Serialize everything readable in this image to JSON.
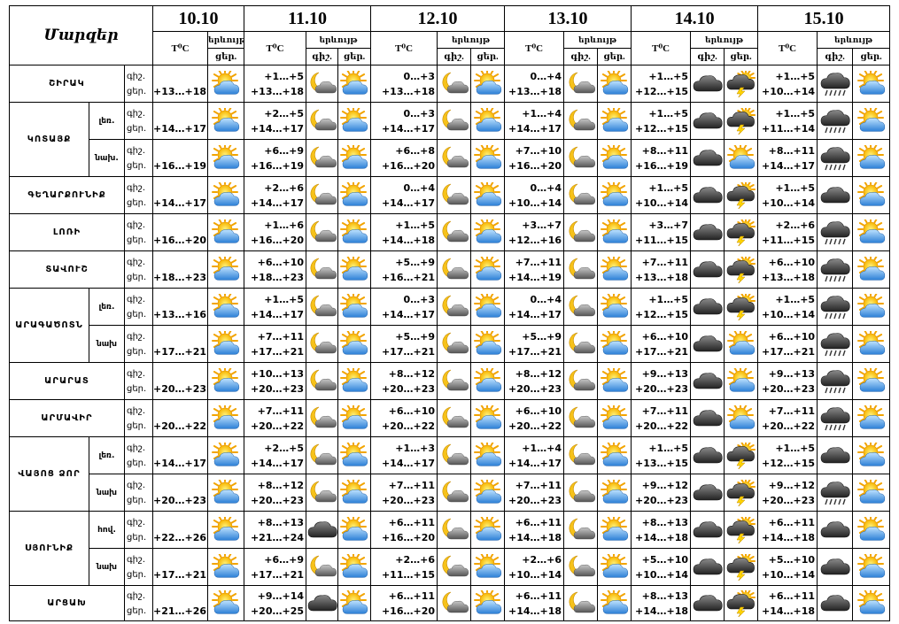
{
  "header": {
    "region_col": "Մարզեր",
    "dates": [
      "10.10",
      "11.10",
      "12.10",
      "13.10",
      "14.10",
      "15.10"
    ],
    "temp_label": "T⁰C",
    "weather_label": "երևույթ",
    "night_label": "գիշ.",
    "day_label": "ցեր."
  },
  "rows": [
    {
      "region": "ՇԻՐԱԿ",
      "zone": "",
      "d10": "+13…+18",
      "d10_icon": "sun-cloud",
      "cells": [
        {
          "n": "+1…+5",
          "d": "+13…+18",
          "ni": "moon-cloud",
          "di": "sun-cloud"
        },
        {
          "n": "0…+3",
          "d": "+13…+18",
          "ni": "moon-cloud",
          "di": "sun-cloud"
        },
        {
          "n": "0…+4",
          "d": "+13…+18",
          "ni": "moon-cloud",
          "di": "sun-cloud"
        },
        {
          "n": "+1…+5",
          "d": "+12…+15",
          "ni": "dark-cloud",
          "di": "thunder"
        },
        {
          "n": "+1…+5",
          "d": "+10…+14",
          "ni": "rain-cloud",
          "di": "sun-cloud"
        }
      ]
    },
    {
      "region": "ԿՈՏԱՅՔ",
      "zone": "լեռ.",
      "d10": "+14…+17",
      "d10_icon": "sun-cloud",
      "cells": [
        {
          "n": "+2…+5",
          "d": "+14…+17",
          "ni": "moon-cloud",
          "di": "sun-cloud"
        },
        {
          "n": "0…+3",
          "d": "+14…+17",
          "ni": "moon-cloud",
          "di": "sun-cloud"
        },
        {
          "n": "+1…+4",
          "d": "+14…+17",
          "ni": "moon-cloud",
          "di": "sun-cloud"
        },
        {
          "n": "+1…+5",
          "d": "+12…+15",
          "ni": "dark-cloud",
          "di": "thunder"
        },
        {
          "n": "+1…+5",
          "d": "+11…+14",
          "ni": "rain-cloud",
          "di": "sun-cloud"
        }
      ]
    },
    {
      "region": "",
      "zone": "նախ.",
      "d10": "+16…+19",
      "d10_icon": "sun-cloud",
      "cells": [
        {
          "n": "+6…+9",
          "d": "+16…+19",
          "ni": "moon-cloud",
          "di": "sun-cloud"
        },
        {
          "n": "+6…+8",
          "d": "+16…+20",
          "ni": "moon-cloud",
          "di": "sun-cloud"
        },
        {
          "n": "+7…+10",
          "d": "+16…+20",
          "ni": "moon-cloud",
          "di": "sun-cloud"
        },
        {
          "n": "+8…+11",
          "d": "+16…+19",
          "ni": "dark-cloud",
          "di": "sun-cloud"
        },
        {
          "n": "+8…+11",
          "d": "+14…+17",
          "ni": "rain-cloud",
          "di": "sun-cloud"
        }
      ]
    },
    {
      "region": "ԳԵՂԱՐՔՈՒՆԻՔ",
      "zone": "",
      "d10": "+14…+17",
      "d10_icon": "sun-cloud",
      "cells": [
        {
          "n": "+2…+6",
          "d": "+14…+17",
          "ni": "moon-cloud",
          "di": "sun-cloud"
        },
        {
          "n": "0…+4",
          "d": "+14…+17",
          "ni": "moon-cloud",
          "di": "sun-cloud"
        },
        {
          "n": "0…+4",
          "d": "+10…+14",
          "ni": "moon-cloud",
          "di": "sun-cloud"
        },
        {
          "n": "+1…+5",
          "d": "+10…+14",
          "ni": "dark-cloud",
          "di": "thunder"
        },
        {
          "n": "+1…+5",
          "d": "+10…+14",
          "ni": "dark-cloud",
          "di": "sun-cloud"
        }
      ]
    },
    {
      "region": "ԼՈՌԻ",
      "zone": "",
      "d10": "+16…+20",
      "d10_icon": "sun-cloud",
      "cells": [
        {
          "n": "+1…+6",
          "d": "+16…+20",
          "ni": "moon-cloud",
          "di": "sun-cloud"
        },
        {
          "n": "+1…+5",
          "d": "+14…+18",
          "ni": "moon-cloud",
          "di": "sun-cloud"
        },
        {
          "n": "+3…+7",
          "d": "+12…+16",
          "ni": "moon-cloud",
          "di": "sun-cloud"
        },
        {
          "n": "+3…+7",
          "d": "+11…+15",
          "ni": "dark-cloud",
          "di": "thunder"
        },
        {
          "n": "+2…+6",
          "d": "+11…+15",
          "ni": "rain-cloud",
          "di": "sun-cloud"
        }
      ]
    },
    {
      "region": "ՏԱՎՈՒՇ",
      "zone": "",
      "d10": "+18…+23",
      "d10_icon": "sun-cloud",
      "cells": [
        {
          "n": "+6…+10",
          "d": "+18…+23",
          "ni": "moon-cloud",
          "di": "sun-cloud"
        },
        {
          "n": "+5…+9",
          "d": "+16…+21",
          "ni": "moon-cloud",
          "di": "sun-cloud"
        },
        {
          "n": "+7…+11",
          "d": "+14…+19",
          "ni": "moon-cloud",
          "di": "sun-cloud"
        },
        {
          "n": "+7…+11",
          "d": "+13…+18",
          "ni": "dark-cloud",
          "di": "thunder"
        },
        {
          "n": "+6…+10",
          "d": "+13…+18",
          "ni": "rain-cloud",
          "di": "sun-cloud"
        }
      ]
    },
    {
      "region": "ԱՐԱԳԱԾՈՏՆ",
      "zone": "լեռ.",
      "d10": "+13…+16",
      "d10_icon": "sun-cloud",
      "cells": [
        {
          "n": "+1…+5",
          "d": "+14…+17",
          "ni": "moon-cloud",
          "di": "sun-cloud"
        },
        {
          "n": "0…+3",
          "d": "+14…+17",
          "ni": "moon-cloud",
          "di": "sun-cloud"
        },
        {
          "n": "0…+4",
          "d": "+14…+17",
          "ni": "moon-cloud",
          "di": "sun-cloud"
        },
        {
          "n": "+1…+5",
          "d": "+12…+15",
          "ni": "dark-cloud",
          "di": "thunder"
        },
        {
          "n": "+1…+5",
          "d": "+10…+14",
          "ni": "rain-cloud",
          "di": "sun-cloud"
        }
      ]
    },
    {
      "region": "",
      "zone": "նախ",
      "d10": "+17…+21",
      "d10_icon": "sun-cloud",
      "cells": [
        {
          "n": "+7…+11",
          "d": "+17…+21",
          "ni": "moon-cloud",
          "di": "sun-cloud"
        },
        {
          "n": "+5…+9",
          "d": "+17…+21",
          "ni": "moon-cloud",
          "di": "sun-cloud"
        },
        {
          "n": "+5…+9",
          "d": "+17…+21",
          "ni": "moon-cloud",
          "di": "sun-cloud"
        },
        {
          "n": "+6…+10",
          "d": "+17…+21",
          "ni": "dark-cloud",
          "di": "sun-cloud"
        },
        {
          "n": "+6…+10",
          "d": "+17…+21",
          "ni": "rain-cloud",
          "di": "sun-cloud"
        }
      ]
    },
    {
      "region": "ԱՐԱՐԱՏ",
      "zone": "",
      "d10": "+20…+23",
      "d10_icon": "sun-cloud",
      "cells": [
        {
          "n": "+10…+13",
          "d": "+20…+23",
          "ni": "moon-cloud",
          "di": "sun-cloud"
        },
        {
          "n": "+8…+12",
          "d": "+20…+23",
          "ni": "moon-cloud",
          "di": "sun-cloud"
        },
        {
          "n": "+8…+12",
          "d": "+20…+23",
          "ni": "moon-cloud",
          "di": "sun-cloud"
        },
        {
          "n": "+9…+13",
          "d": "+20…+23",
          "ni": "dark-cloud",
          "di": "sun-cloud"
        },
        {
          "n": "+9…+13",
          "d": "+20…+23",
          "ni": "rain-cloud",
          "di": "sun-cloud"
        }
      ]
    },
    {
      "region": "ԱՐՄԱՎԻՐ",
      "zone": "",
      "d10": "+20…+22",
      "d10_icon": "sun-cloud",
      "cells": [
        {
          "n": "+7…+11",
          "d": "+20…+22",
          "ni": "moon-cloud",
          "di": "sun-cloud"
        },
        {
          "n": "+6…+10",
          "d": "+20…+22",
          "ni": "moon-cloud",
          "di": "sun-cloud"
        },
        {
          "n": "+6…+10",
          "d": "+20…+22",
          "ni": "moon-cloud",
          "di": "sun-cloud"
        },
        {
          "n": "+7…+11",
          "d": "+20…+22",
          "ni": "dark-cloud",
          "di": "sun-cloud"
        },
        {
          "n": "+7…+11",
          "d": "+20…+22",
          "ni": "rain-cloud",
          "di": "sun-cloud"
        }
      ]
    },
    {
      "region": "ՎԱՅՈՑ ՁՈՐ",
      "zone": "լեռ.",
      "d10": "+14…+17",
      "d10_icon": "sun-cloud",
      "cells": [
        {
          "n": "+2…+5",
          "d": "+14…+17",
          "ni": "moon-cloud",
          "di": "sun-cloud"
        },
        {
          "n": "+1…+3",
          "d": "+14…+17",
          "ni": "moon-cloud",
          "di": "sun-cloud"
        },
        {
          "n": "+1…+4",
          "d": "+14…+17",
          "ni": "moon-cloud",
          "di": "sun-cloud"
        },
        {
          "n": "+1…+5",
          "d": "+13…+15",
          "ni": "dark-cloud",
          "di": "thunder"
        },
        {
          "n": "+1…+5",
          "d": "+12…+15",
          "ni": "dark-cloud",
          "di": "sun-cloud"
        }
      ]
    },
    {
      "region": "",
      "zone": "նախ",
      "d10": "+20…+23",
      "d10_icon": "sun-cloud",
      "cells": [
        {
          "n": "+8…+12",
          "d": "+20…+23",
          "ni": "moon-cloud",
          "di": "sun-cloud"
        },
        {
          "n": "+7…+11",
          "d": "+20…+23",
          "ni": "moon-cloud",
          "di": "sun-cloud"
        },
        {
          "n": "+7…+11",
          "d": "+20…+23",
          "ni": "moon-cloud",
          "di": "sun-cloud"
        },
        {
          "n": "+9…+12",
          "d": "+20…+23",
          "ni": "dark-cloud",
          "di": "thunder"
        },
        {
          "n": "+9…+12",
          "d": "+20…+23",
          "ni": "rain-cloud",
          "di": "sun-cloud"
        }
      ]
    },
    {
      "region": "ՍՅՈՒՆԻՔ",
      "zone": "հով.",
      "d10": "+22…+26",
      "d10_icon": "sun-cloud",
      "cells": [
        {
          "n": "+8…+13",
          "d": "+21…+24",
          "ni": "dark-cloud",
          "di": "sun-cloud"
        },
        {
          "n": "+6…+11",
          "d": "+16…+20",
          "ni": "moon-cloud",
          "di": "sun-cloud"
        },
        {
          "n": "+6…+11",
          "d": "+14…+18",
          "ni": "moon-cloud",
          "di": "sun-cloud"
        },
        {
          "n": "+8…+13",
          "d": "+14…+18",
          "ni": "dark-cloud",
          "di": "thunder"
        },
        {
          "n": "+6…+11",
          "d": "+14…+18",
          "ni": "dark-cloud",
          "di": "sun-cloud"
        }
      ]
    },
    {
      "region": "",
      "zone": "նախ",
      "d10": "+17…+21",
      "d10_icon": "sun-cloud",
      "cells": [
        {
          "n": "+6…+9",
          "d": "+17…+21",
          "ni": "moon-cloud",
          "di": "sun-cloud"
        },
        {
          "n": "+2…+6",
          "d": "+11…+15",
          "ni": "moon-cloud",
          "di": "sun-cloud"
        },
        {
          "n": "+2…+6",
          "d": "+10…+14",
          "ni": "moon-cloud",
          "di": "sun-cloud"
        },
        {
          "n": "+5…+10",
          "d": "+10…+14",
          "ni": "dark-cloud",
          "di": "thunder"
        },
        {
          "n": "+5…+10",
          "d": "+10…+14",
          "ni": "dark-cloud",
          "di": "sun-cloud"
        }
      ]
    },
    {
      "region": "ԱՐՑԱԽ",
      "zone": "",
      "d10": "+21…+26",
      "d10_icon": "sun-cloud",
      "cells": [
        {
          "n": "+9…+14",
          "d": "+20…+25",
          "ni": "dark-cloud",
          "di": "sun-cloud"
        },
        {
          "n": "+6…+11",
          "d": "+16…+20",
          "ni": "moon-cloud",
          "di": "sun-cloud"
        },
        {
          "n": "+6…+11",
          "d": "+14…+18",
          "ni": "moon-cloud",
          "di": "sun-cloud"
        },
        {
          "n": "+8…+13",
          "d": "+14…+18",
          "ni": "dark-cloud",
          "di": "thunder"
        },
        {
          "n": "+6…+11",
          "d": "+14…+18",
          "ni": "dark-cloud",
          "di": "sun-cloud"
        }
      ]
    }
  ]
}
